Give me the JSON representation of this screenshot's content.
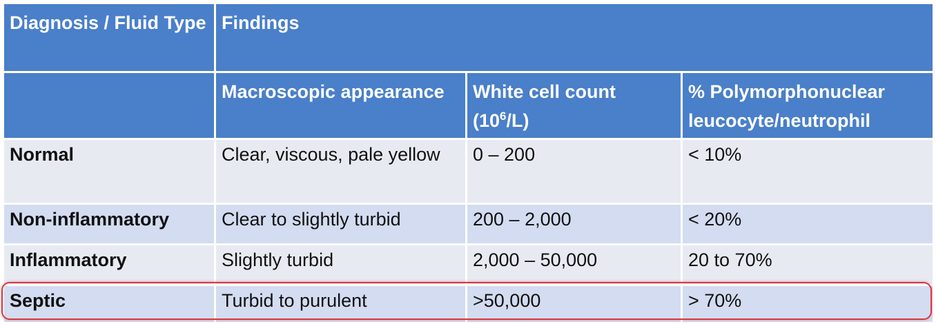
{
  "table": {
    "header": {
      "diagnosis": "Diagnosis / Fluid Type",
      "findings": "Findings",
      "macroscopic": "Macroscopic appearance",
      "wcc_prefix": "White cell count (10",
      "wcc_sup": "6",
      "wcc_suffix": "/L)",
      "pmn": "% Polymorphonuclear leucocyte/neutrophil"
    },
    "rows": [
      {
        "diagnosis": "Normal",
        "appearance": "Clear, viscous, pale yellow",
        "wcc": "0 – 200",
        "pmn": "< 10%"
      },
      {
        "diagnosis": "Non-inflammatory",
        "appearance": "Clear to slightly turbid",
        "wcc": "200 – 2,000",
        "pmn": "< 20%"
      },
      {
        "diagnosis": "Inflammatory",
        "appearance": "Slightly turbid",
        "wcc": "2,000 – 50,000",
        "pmn": "20 to 70%"
      },
      {
        "diagnosis": "Septic",
        "appearance": "Turbid to purulent",
        "wcc": ">50,000",
        "pmn": "> 70%"
      }
    ]
  },
  "colors": {
    "header_bg": "#4a7fc9",
    "row_light": "#e8eaf2",
    "row_dark": "#d3dcf0",
    "highlight": "#d9363e"
  }
}
